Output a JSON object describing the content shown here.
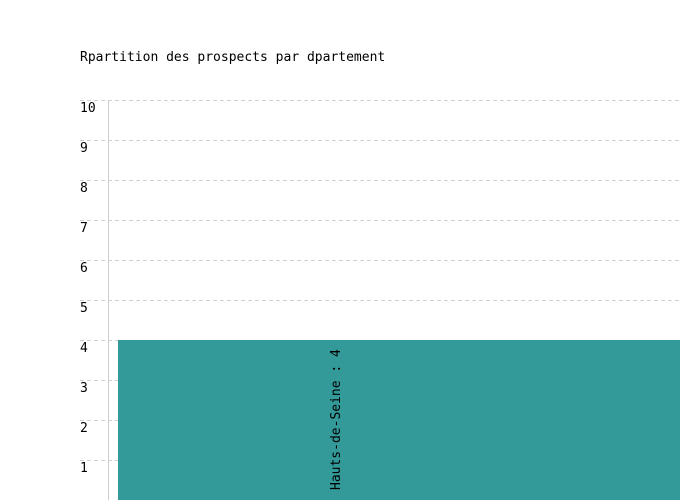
{
  "chart_data": {
    "type": "bar",
    "title": "Rpartition des prospects par dpartement",
    "categories": [
      "Hauts-de-Seine"
    ],
    "values": [
      4
    ],
    "data_labels": [
      "Hauts-de-Seine : 4"
    ],
    "ylim": [
      0,
      10
    ],
    "yticks": [
      "1",
      "2",
      "3",
      "4",
      "5",
      "6",
      "7",
      "8",
      "9",
      "10"
    ],
    "grid": true,
    "bar_color": "#339999",
    "xlabel": "",
    "ylabel": ""
  }
}
